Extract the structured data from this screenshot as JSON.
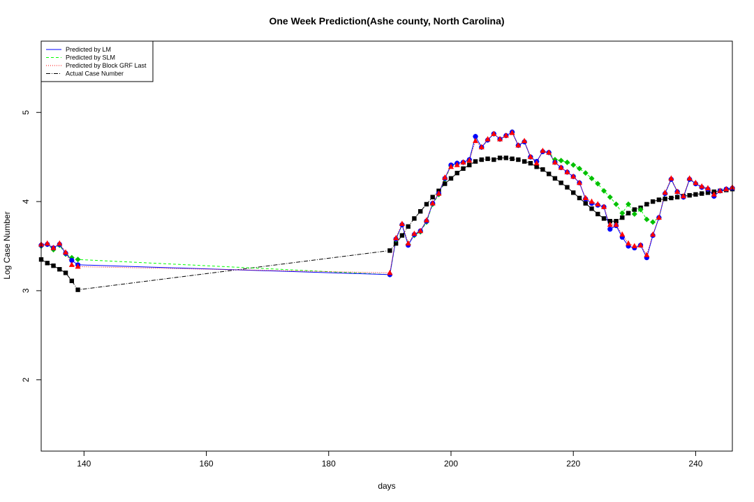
{
  "chart_data": {
    "type": "line",
    "title": "One Week Prediction(Ashe county, North Carolina)",
    "xlabel": "days",
    "ylabel": "Log Case Number",
    "xlim": [
      133,
      246
    ],
    "ylim": [
      1.2,
      5.8
    ],
    "xticks": [
      140,
      160,
      180,
      200,
      220,
      240
    ],
    "yticks": [
      2,
      3,
      4,
      5
    ],
    "grid": false,
    "legend_position": "top-left",
    "x": [
      133,
      134,
      135,
      136,
      137,
      138,
      139,
      190,
      191,
      192,
      193,
      194,
      195,
      196,
      197,
      198,
      199,
      200,
      201,
      202,
      203,
      204,
      205,
      206,
      207,
      208,
      209,
      210,
      211,
      212,
      213,
      214,
      215,
      216,
      217,
      218,
      219,
      220,
      221,
      222,
      223,
      224,
      225,
      226,
      227,
      228,
      229,
      230,
      231,
      232,
      233,
      234,
      235,
      236,
      237,
      238,
      239,
      240,
      241,
      242,
      243,
      244,
      245,
      246
    ],
    "series": [
      {
        "name": "Predicted by LM",
        "color": "#0000ff",
        "marker": "circle",
        "values": [
          3.51,
          3.52,
          3.48,
          3.52,
          3.42,
          3.34,
          3.29,
          3.18,
          3.58,
          3.74,
          3.51,
          3.63,
          3.67,
          3.78,
          3.98,
          4.09,
          4.26,
          4.41,
          4.43,
          4.44,
          4.47,
          4.73,
          4.61,
          4.69,
          4.76,
          4.7,
          4.74,
          4.78,
          4.63,
          4.67,
          4.5,
          4.45,
          4.56,
          4.55,
          4.44,
          4.38,
          4.33,
          4.28,
          4.21,
          4.03,
          3.98,
          3.96,
          3.94,
          3.69,
          3.73,
          3.6,
          3.5,
          3.48,
          3.51,
          3.37,
          3.62,
          3.82,
          4.09,
          4.25,
          4.11,
          4.05,
          4.25,
          4.2,
          4.16,
          4.14,
          4.06,
          4.12,
          4.14,
          4.15
        ]
      },
      {
        "name": "Predicted by SLM",
        "color": "#00ff00",
        "marker": "diamond",
        "values": [
          3.5,
          3.52,
          3.46,
          3.51,
          3.41,
          3.37,
          3.35,
          3.18,
          3.57,
          3.74,
          3.52,
          3.62,
          3.66,
          3.77,
          3.97,
          4.08,
          4.25,
          4.4,
          4.43,
          4.44,
          4.47,
          4.73,
          4.61,
          4.69,
          4.76,
          4.7,
          4.74,
          4.78,
          4.63,
          4.67,
          4.5,
          4.45,
          4.56,
          4.55,
          4.47,
          4.46,
          4.44,
          4.41,
          4.37,
          4.32,
          4.26,
          4.2,
          4.12,
          4.05,
          3.97,
          3.87,
          3.97,
          3.86,
          3.91,
          3.8,
          3.77,
          3.82,
          4.09,
          4.25,
          4.11,
          4.05,
          4.25,
          4.2,
          4.16,
          4.14,
          4.06,
          4.12,
          4.14,
          4.15
        ]
      },
      {
        "name": "Predicted by Block GRF Last",
        "color": "#ff0000",
        "marker": "triangle",
        "values": [
          3.52,
          3.53,
          3.48,
          3.53,
          3.43,
          3.29,
          3.27,
          3.2,
          3.59,
          3.75,
          3.53,
          3.64,
          3.67,
          3.79,
          3.98,
          4.09,
          4.27,
          4.39,
          4.41,
          4.44,
          4.46,
          4.68,
          4.61,
          4.7,
          4.76,
          4.7,
          4.74,
          4.77,
          4.63,
          4.68,
          4.5,
          4.43,
          4.57,
          4.55,
          4.44,
          4.38,
          4.33,
          4.28,
          4.21,
          4.04,
          4.0,
          3.97,
          3.94,
          3.74,
          3.74,
          3.63,
          3.53,
          3.5,
          3.51,
          3.4,
          3.63,
          3.82,
          4.1,
          4.26,
          4.11,
          4.06,
          4.26,
          4.21,
          4.17,
          4.15,
          4.08,
          4.12,
          4.14,
          4.16
        ]
      },
      {
        "name": "Actual Case Number",
        "color": "#000000",
        "marker": "square",
        "values": [
          3.35,
          3.31,
          3.28,
          3.24,
          3.2,
          3.11,
          3.01,
          3.45,
          3.53,
          3.62,
          3.72,
          3.81,
          3.89,
          3.97,
          4.05,
          4.12,
          4.2,
          4.26,
          4.32,
          4.37,
          4.41,
          4.45,
          4.47,
          4.48,
          4.47,
          4.49,
          4.49,
          4.48,
          4.47,
          4.45,
          4.43,
          4.39,
          4.36,
          4.31,
          4.26,
          4.21,
          4.16,
          4.1,
          4.04,
          3.98,
          3.92,
          3.86,
          3.81,
          3.78,
          3.78,
          3.82,
          3.87,
          3.91,
          3.93,
          3.97,
          4.0,
          4.02,
          4.03,
          4.04,
          4.05,
          4.06,
          4.07,
          4.08,
          4.09,
          4.1,
          4.11,
          4.12,
          4.13,
          4.14
        ]
      }
    ]
  }
}
